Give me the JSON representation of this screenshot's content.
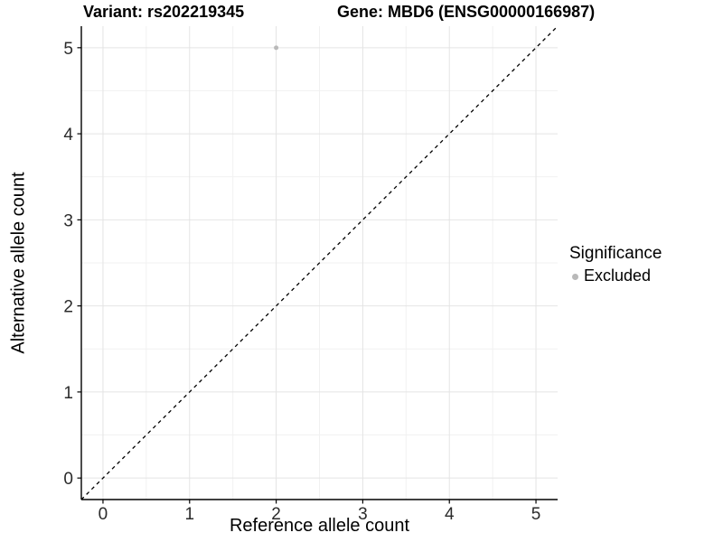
{
  "chart_data": {
    "type": "scatter",
    "titles": {
      "variant": "Variant: rs202219345",
      "gene": "Gene: MBD6 (ENSG00000166987)"
    },
    "xlabel": "Reference allele count",
    "ylabel": "Alternative allele count",
    "xlim": [
      -0.25,
      5.25
    ],
    "ylim": [
      -0.25,
      5.25
    ],
    "xticks": [
      0,
      1,
      2,
      3,
      4,
      5
    ],
    "yticks": [
      0,
      1,
      2,
      3,
      4,
      5
    ],
    "xminor": [
      0.5,
      1.5,
      2.5,
      3.5,
      4.5
    ],
    "yminor": [
      0.5,
      1.5,
      2.5,
      3.5,
      4.5
    ],
    "grid": "major+minor",
    "points": [
      {
        "x": 2,
        "y": 5,
        "significance": "Excluded"
      }
    ],
    "identity_line": {
      "slope": 1,
      "intercept": 0,
      "style": "dashed"
    },
    "legend": {
      "title": "Significance",
      "position": "right",
      "items": [
        {
          "label": "Excluded",
          "color": "#b9b9b9"
        }
      ]
    },
    "colors": {
      "point": "#b9b9b9",
      "grid_major": "#e4e4e4",
      "grid_minor": "#f1f1f1",
      "axis": "#000000",
      "tick_label": "#2b2b2b",
      "identity_line": "#000000",
      "background": "#ffffff"
    }
  }
}
